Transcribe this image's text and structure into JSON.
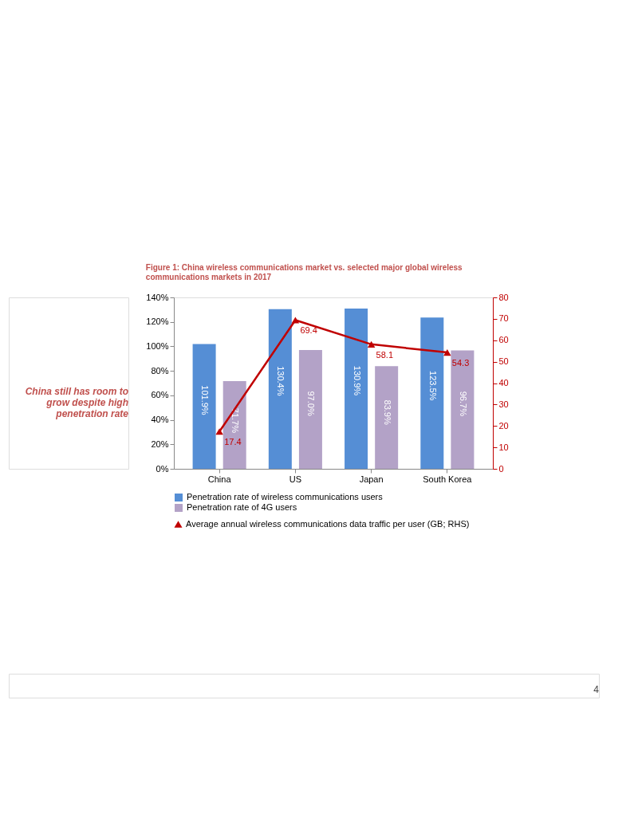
{
  "chart_data": {
    "type": "bar",
    "title": "Figure 1: China wireless communications market vs. selected major global wireless communications markets in 2017",
    "annotations": [
      "China still has room to grow despite high penetration rate",
      "4"
    ],
    "categories": [
      "China",
      "US",
      "Japan",
      "South Korea"
    ],
    "series": [
      {
        "name": "Penetration rate of wireless communications users",
        "type": "bar",
        "color": "#558ed5",
        "values": [
          101.9,
          130.4,
          130.9,
          123.5
        ],
        "value_labels": [
          "101.9%",
          "130.4%",
          "130.9%",
          "123.5%"
        ]
      },
      {
        "name": "Penetration rate of 4G users",
        "type": "bar",
        "color": "#b3a2c7",
        "values": [
          71.7,
          97.0,
          83.9,
          96.7
        ],
        "value_labels": [
          "71.7%",
          "97.0%",
          "83.9%",
          "96.7%"
        ]
      },
      {
        "name": "Average annual wireless communications data traffic per user (GB; RHS)",
        "type": "line",
        "axis": "y2",
        "color": "#c00000",
        "marker": "triangle",
        "values": [
          17.4,
          69.4,
          58.1,
          54.3
        ],
        "value_labels": [
          "17.4",
          "69.4",
          "58.1",
          "54.3"
        ]
      }
    ],
    "ylim": [
      0,
      140
    ],
    "yticks": [
      {
        "value": 0,
        "label": "0%"
      },
      {
        "value": 20,
        "label": "20%"
      },
      {
        "value": 40,
        "label": "40%"
      },
      {
        "value": 60,
        "label": "60%"
      },
      {
        "value": 80,
        "label": "80%"
      },
      {
        "value": 100,
        "label": "100%"
      },
      {
        "value": 120,
        "label": "120%"
      },
      {
        "value": 140,
        "label": "140%"
      }
    ],
    "y2lim": [
      0,
      80
    ],
    "y2ticks": [
      0,
      10,
      20,
      30,
      40,
      50,
      60,
      70,
      80
    ],
    "grid": false,
    "legend": "bottom"
  }
}
